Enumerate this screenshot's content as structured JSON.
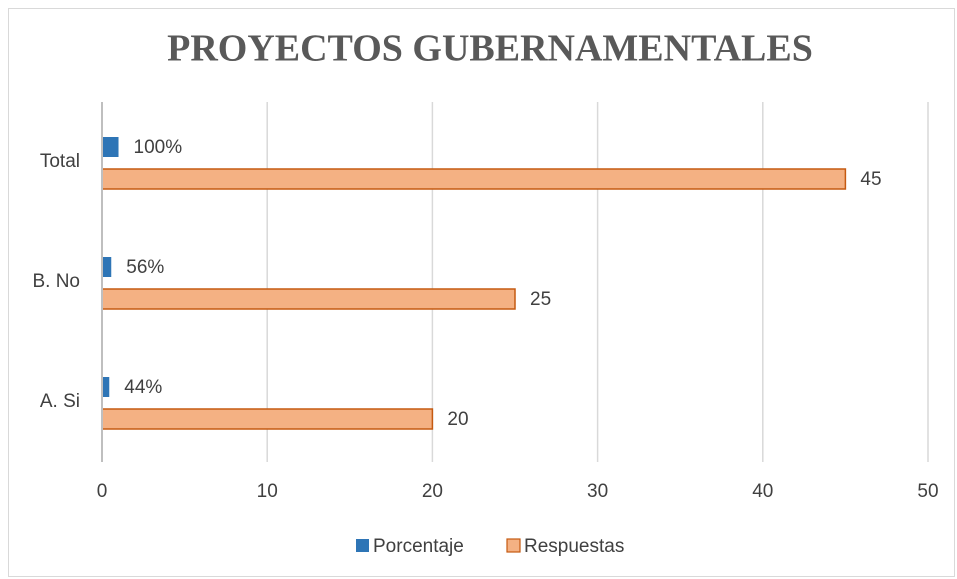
{
  "chart_data": {
    "type": "hbar",
    "title": "PROYECTOS GUBERNAMENTALES",
    "categories": [
      "A. Si",
      "B. No",
      "Total"
    ],
    "series": [
      {
        "name": "Porcentaje",
        "color": "#2e75b6",
        "values": [
          0.44,
          0.56,
          1
        ],
        "value_labels": [
          "44%",
          "56%",
          "100%"
        ]
      },
      {
        "name": "Respuestas",
        "color": "#f4b183",
        "values": [
          20,
          25,
          45
        ]
      }
    ],
    "xlim": [
      0,
      50
    ],
    "xticks": [
      0,
      10,
      20,
      30,
      40,
      50
    ],
    "grid": true,
    "legend": "bottom"
  }
}
